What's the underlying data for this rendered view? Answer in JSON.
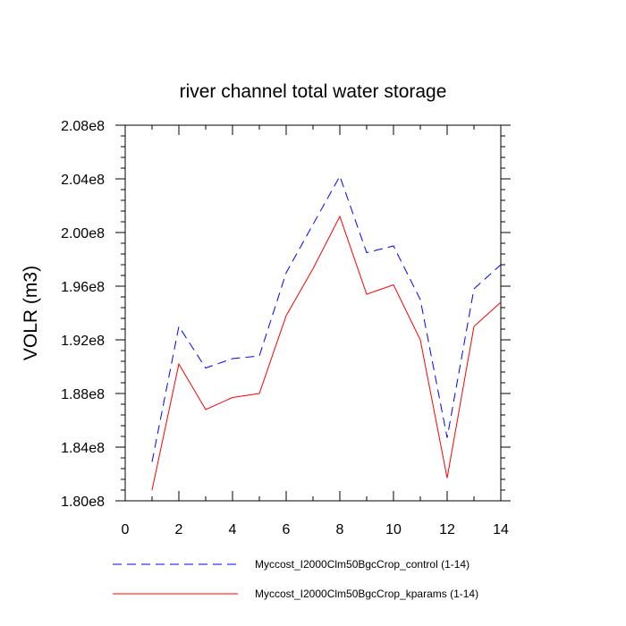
{
  "chart_data": {
    "type": "line",
    "title": "river channel total water storage",
    "xlabel": "",
    "ylabel": "VOLR  (m3)",
    "xlim": [
      0,
      14
    ],
    "ylim": [
      180000000,
      208000000
    ],
    "x_ticks": [
      0,
      2,
      4,
      6,
      8,
      10,
      12,
      14
    ],
    "x_tick_labels": [
      "0",
      "2",
      "4",
      "6",
      "8",
      "10",
      "12",
      "14"
    ],
    "y_ticks": [
      180000000,
      184000000,
      188000000,
      192000000,
      196000000,
      200000000,
      204000000,
      208000000
    ],
    "y_tick_labels": [
      "1.80e8",
      "1.84e8",
      "1.88e8",
      "1.92e8",
      "1.96e8",
      "2.00e8",
      "2.04e8",
      "2.08e8"
    ],
    "grid": false,
    "legend_position": "bottom",
    "x": [
      1,
      2,
      3,
      4,
      5,
      6,
      7,
      8,
      9,
      10,
      11,
      12,
      13,
      14
    ],
    "series": [
      {
        "name": "Myccost_I2000Clm50BgcCrop_control (1-14)",
        "color": "#0000ff",
        "style": "dashed",
        "values": [
          182900000,
          193000000,
          189900000,
          190600000,
          190800000,
          197000000,
          200600000,
          204200000,
          198500000,
          199000000,
          195000000,
          184700000,
          195800000,
          197600000
        ]
      },
      {
        "name": "Myccost_I2000Clm50BgcCrop_kparams (1-14)",
        "color": "#ff0000",
        "style": "solid",
        "values": [
          180800000,
          190200000,
          186800000,
          187700000,
          188000000,
          193800000,
          197300000,
          201200000,
          195400000,
          196100000,
          192000000,
          181700000,
          193000000,
          194800000
        ]
      }
    ]
  }
}
